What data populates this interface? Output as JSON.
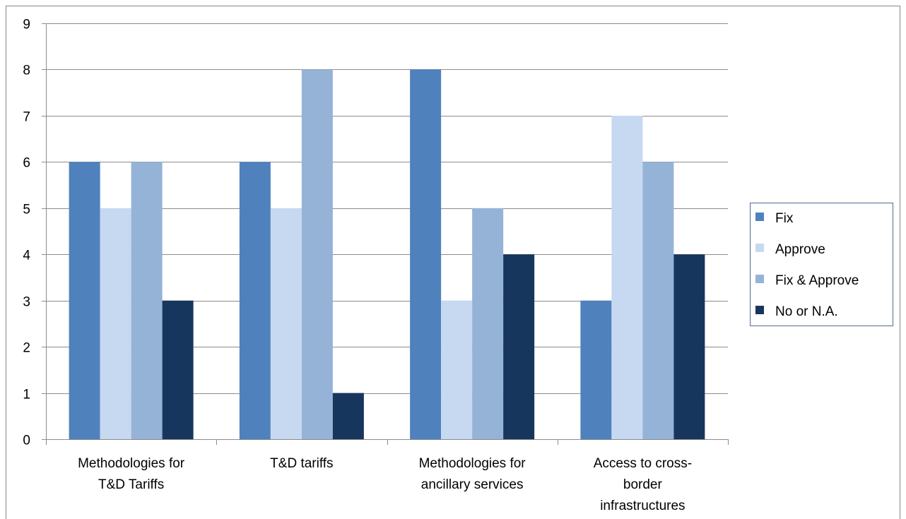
{
  "chart_data": {
    "type": "bar",
    "title": "",
    "xlabel": "",
    "ylabel": "",
    "ylim": [
      0,
      9
    ],
    "yticks": [
      0,
      1,
      2,
      3,
      4,
      5,
      6,
      7,
      8,
      9
    ],
    "grid": true,
    "legend_position": "right",
    "categories": [
      [
        "Methodologies for",
        "T&D Tariffs"
      ],
      [
        "T&D tariffs"
      ],
      [
        "Methodologies for",
        "ancillary services"
      ],
      [
        "Access to cross-",
        "border",
        "infrastructures"
      ]
    ],
    "series": [
      {
        "name": "Fix",
        "color": "#4f81bd",
        "values": [
          6,
          6,
          8,
          3
        ]
      },
      {
        "name": "Approve",
        "color": "#c6d9f1",
        "values": [
          5,
          5,
          3,
          7
        ]
      },
      {
        "name": "Fix & Approve",
        "color": "#95b3d7",
        "values": [
          6,
          8,
          5,
          6
        ]
      },
      {
        "name": "No or N.A.",
        "color": "#17365d",
        "values": [
          3,
          1,
          4,
          4
        ]
      }
    ]
  }
}
